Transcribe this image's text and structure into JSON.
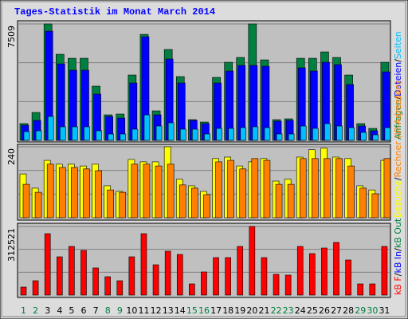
{
  "chart_data": {
    "type": "bar",
    "title": "Tages-Statistik im Monat March 2014",
    "categories": [
      "1",
      "2",
      "3",
      "4",
      "5",
      "6",
      "7",
      "8",
      "9",
      "10",
      "11",
      "12",
      "13",
      "14",
      "15",
      "16",
      "17",
      "18",
      "19",
      "20",
      "21",
      "22",
      "23",
      "24",
      "25",
      "26",
      "27",
      "28",
      "29",
      "30",
      "31"
    ],
    "category_colors": [
      "#008040",
      "#008040",
      "#000000",
      "#000000",
      "#000000",
      "#000000",
      "#000000",
      "#008040",
      "#008040",
      "#000000",
      "#000000",
      "#000000",
      "#000000",
      "#000000",
      "#008040",
      "#008040",
      "#000000",
      "#000000",
      "#000000",
      "#000000",
      "#000000",
      "#008040",
      "#008040",
      "#000000",
      "#000000",
      "#000000",
      "#000000",
      "#000000",
      "#008040",
      "#008040",
      "#000000"
    ],
    "legend_separator": "/",
    "panels": [
      {
        "ylim": [
          0,
          7509
        ],
        "yticks": [
          7509
        ],
        "series": [
          {
            "name": "Anfragen",
            "color": "#008040",
            "values": [
              1079,
              1799,
              7509,
              5551,
              5294,
              5294,
              3495,
              1645,
              1696,
              4215,
              6836,
              1902,
              5860,
              4112,
              1336,
              1182,
              4061,
              5037,
              5346,
              7509,
              5191,
              1336,
              1388,
              5294,
              5294,
              5705,
              5346,
              4215,
              1079,
              771,
              5037
            ]
          },
          {
            "name": "Dateien",
            "color": "#0000ff",
            "values": [
              977,
              1285,
              7042,
              4934,
              4523,
              4523,
              2981,
              1542,
              1439,
              3701,
              6682,
              1645,
              5243,
              3701,
              1285,
              1079,
              3701,
              4472,
              4832,
              4832,
              4780,
              1234,
              1285,
              4677,
              4472,
              5037,
              4883,
              3598,
              925,
              617,
              4420
            ]
          },
          {
            "name": "Seiten",
            "color": "#00c0ff",
            "values": [
              565,
              617,
              1542,
              874,
              874,
              874,
              617,
              411,
              411,
              720,
              1645,
              925,
              1131,
              720,
              720,
              411,
              771,
              771,
              822,
              874,
              822,
              411,
              411,
              925,
              771,
              1079,
              925,
              822,
              514,
              360,
              822
            ]
          }
        ]
      },
      {
        "ylim": [
          0,
          240
        ],
        "yticks": [
          240
        ],
        "series": [
          {
            "name": "Besuche",
            "color": "#ffff00",
            "values": [
              148,
              100,
              194,
              181,
              181,
              175,
              181,
              108,
              89,
              197,
              189,
              189,
              240,
              130,
              108,
              89,
              200,
              205,
              175,
              189,
              200,
              124,
              130,
              205,
              230,
              235,
              205,
              200,
              108,
              94,
              194
            ]
          },
          {
            "name": "Rechner (IP-Adressen)",
            "color": "#ff8000",
            "values": [
              113,
              86,
              181,
              170,
              170,
              165,
              159,
              94,
              86,
              181,
              181,
              175,
              181,
              111,
              100,
              78,
              189,
              194,
              165,
              200,
              194,
              113,
              113,
              200,
              200,
              200,
              200,
              175,
              100,
              81,
              200
            ]
          }
        ]
      },
      {
        "ylim": [
          0,
          312521
        ],
        "yticks": [
          312521
        ],
        "series": [
          {
            "name": "kB F",
            "color": "#ff0000",
            "values": [
              36340,
              65400,
              279800,
              174400,
              221700,
              203500,
              123600,
              83600,
              65400,
              174400,
              279800,
              138100,
              199900,
              185300,
              50900,
              105400,
              170800,
              170800,
              221700,
              312521,
              170800,
              94500,
              90900,
              221700,
              189000,
              214400,
              239800,
              159900,
              50900,
              50900,
              221700
            ]
          },
          {
            "name": "kB In",
            "color": "#0000ff",
            "values": [
              null,
              null,
              null,
              null,
              null,
              null,
              null,
              null,
              null,
              null,
              null,
              null,
              null,
              null,
              null,
              null,
              null,
              null,
              null,
              null,
              null,
              null,
              null,
              null,
              null,
              null,
              null,
              null,
              null,
              null,
              null
            ]
          },
          {
            "name": "kB Out",
            "color": "#008040",
            "values": [
              null,
              null,
              null,
              null,
              null,
              null,
              null,
              null,
              null,
              null,
              null,
              null,
              null,
              null,
              null,
              null,
              null,
              null,
              null,
              null,
              null,
              null,
              null,
              null,
              null,
              null,
              null,
              null,
              null,
              null,
              null
            ]
          }
        ]
      }
    ]
  }
}
